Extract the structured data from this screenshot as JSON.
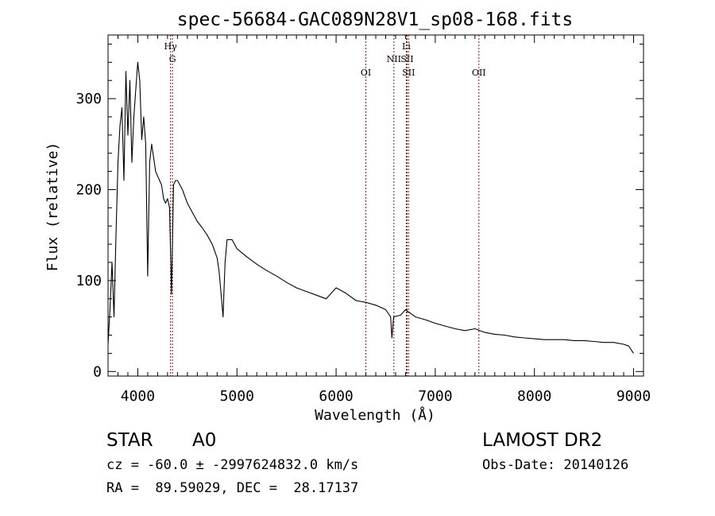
{
  "chart_data": {
    "type": "line",
    "title": "spec-56684-GAC089N28V1_sp08-168.fits",
    "xlabel": "Wavelength (Å)",
    "ylabel": "Flux (relative)",
    "xlim": [
      3700,
      9100
    ],
    "ylim": [
      -5,
      370
    ],
    "x_ticks": [
      4000,
      5000,
      6000,
      7000,
      8000,
      9000
    ],
    "x_tick_labels": [
      "4000",
      "5000",
      "6000",
      "7000",
      "8000",
      "9000"
    ],
    "y_ticks": [
      0,
      100,
      200,
      300
    ],
    "y_tick_labels": [
      "0",
      "100",
      "200",
      "300"
    ],
    "grid": false,
    "series": [
      {
        "x": [
          3700,
          3720,
          3740,
          3760,
          3780,
          3800,
          3820,
          3840,
          3860,
          3880,
          3900,
          3920,
          3940,
          3960,
          3980,
          4000,
          4020,
          4040,
          4060,
          4080,
          4100,
          4120,
          4140,
          4160,
          4180,
          4200,
          4220,
          4240,
          4260,
          4280,
          4300,
          4320,
          4340,
          4360,
          4380,
          4400,
          4450,
          4500,
          4550,
          4600,
          4650,
          4700,
          4750,
          4800,
          4820,
          4840,
          4860,
          4870,
          4880,
          4900,
          4950,
          5000,
          5100,
          5200,
          5300,
          5400,
          5500,
          5600,
          5700,
          5800,
          5900,
          6000,
          6100,
          6200,
          6300,
          6400,
          6500,
          6550,
          6563,
          6580,
          6650,
          6700,
          6800,
          6900,
          7000,
          7100,
          7200,
          7300,
          7400,
          7500,
          7600,
          7700,
          7800,
          7900,
          8000,
          8100,
          8200,
          8300,
          8400,
          8500,
          8600,
          8700,
          8800,
          8900,
          8950,
          9000
        ],
        "y": [
          30,
          70,
          120,
          60,
          150,
          230,
          270,
          290,
          210,
          330,
          260,
          320,
          230,
          280,
          310,
          340,
          320,
          255,
          280,
          250,
          105,
          230,
          250,
          235,
          220,
          215,
          210,
          205,
          190,
          185,
          190,
          180,
          85,
          205,
          210,
          210,
          200,
          185,
          175,
          165,
          158,
          150,
          140,
          125,
          110,
          85,
          60,
          90,
          120,
          145,
          145,
          135,
          126,
          118,
          111,
          105,
          98,
          92,
          88,
          84,
          80,
          92,
          86,
          78,
          76,
          73,
          68,
          60,
          37,
          60,
          62,
          68,
          60,
          57,
          53,
          50,
          47,
          45,
          47,
          43,
          41,
          40,
          38,
          37,
          36,
          35,
          35,
          35,
          34,
          34,
          33,
          32,
          32,
          30,
          28,
          20
        ]
      }
    ],
    "line_markers": [
      {
        "wavelength": 4330,
        "label": "Hγ",
        "row": 0
      },
      {
        "wavelength": 4350,
        "label": "G",
        "row": 1
      },
      {
        "wavelength": 6300,
        "label": "OI",
        "row": 2
      },
      {
        "wavelength": 6583,
        "label": "NII",
        "row": 1
      },
      {
        "wavelength": 6708,
        "label": "Li",
        "row": 0
      },
      {
        "wavelength": 6716,
        "label": "SII",
        "row": 1
      },
      {
        "wavelength": 6731,
        "label": "SII",
        "row": 2
      },
      {
        "wavelength": 7440,
        "label": "OII",
        "row": 2
      }
    ],
    "line_marker_color": "#8b1a1a"
  },
  "info": {
    "object_class": "STAR",
    "subclass": "A0",
    "survey": "LAMOST DR2",
    "cz": "cz = -60.0 ± -2997624832.0 km/s",
    "obs_date": "Obs-Date: 20140126",
    "coords": "RA =  89.59029, DEC =  28.17137"
  }
}
